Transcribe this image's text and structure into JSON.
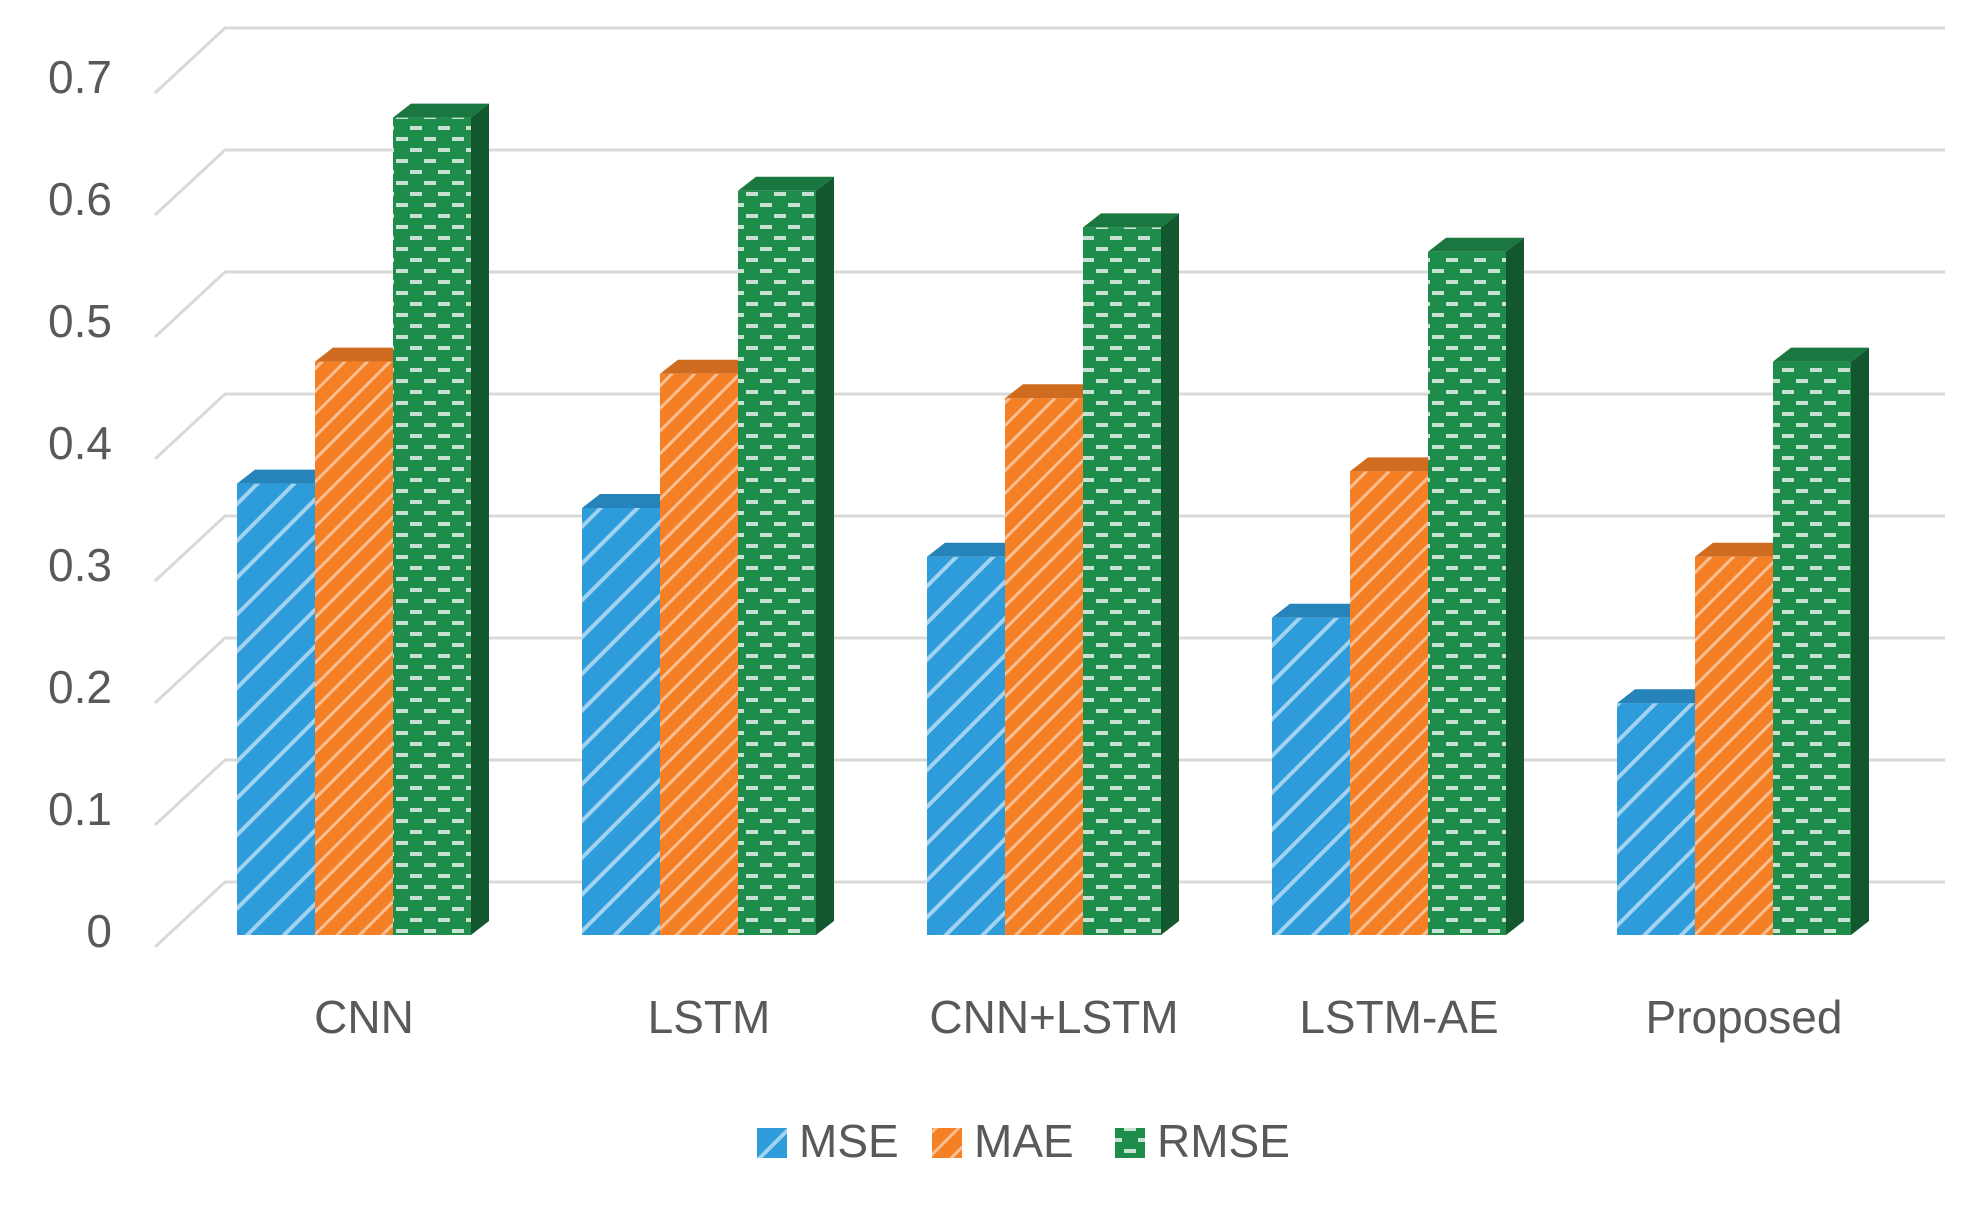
{
  "chart_data": {
    "type": "bar",
    "style": "3d-clustered-column",
    "title": "",
    "xlabel": "",
    "ylabel": "",
    "categories": [
      "CNN",
      "LSTM",
      "CNN+LSTM",
      "LSTM-AE",
      "Proposed"
    ],
    "series": [
      {
        "name": "MSE",
        "values": [
          0.37,
          0.35,
          0.31,
          0.26,
          0.19
        ],
        "color": "#2e9bdb",
        "pattern": "wide-diagonal-hatch"
      },
      {
        "name": "MAE",
        "values": [
          0.47,
          0.46,
          0.44,
          0.38,
          0.31
        ],
        "color": "#f57f25",
        "pattern": "narrow-diagonal-hatch"
      },
      {
        "name": "RMSE",
        "values": [
          0.67,
          0.61,
          0.58,
          0.56,
          0.47
        ],
        "color": "#1e8c4a",
        "pattern": "dashed-horizontal"
      }
    ],
    "ylim": [
      0,
      0.7
    ],
    "yticks": [
      "0",
      "0.1",
      "0.2",
      "0.3",
      "0.4",
      "0.5",
      "0.6",
      "0.7"
    ],
    "grid": true,
    "legend_position": "bottom"
  }
}
